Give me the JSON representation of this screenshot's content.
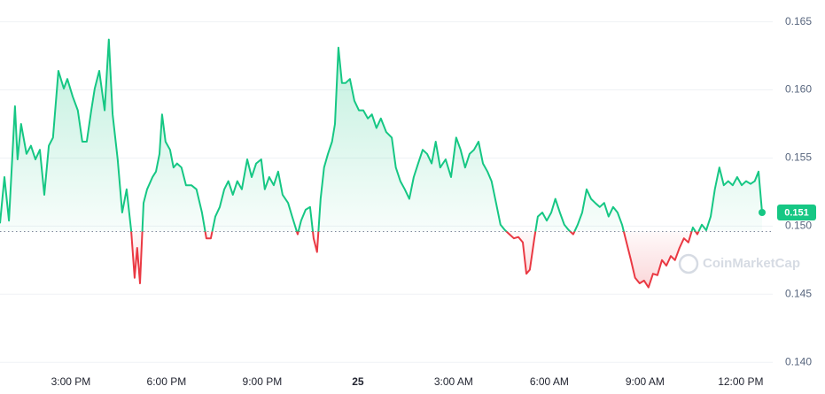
{
  "chart_data": {
    "type": "line",
    "x": [
      0.78,
      0.92,
      1.06,
      1.25,
      1.33,
      1.44,
      1.61,
      1.75,
      1.89,
      2.03,
      2.17,
      2.31,
      2.44,
      2.61,
      2.78,
      2.89,
      3.06,
      3.22,
      3.36,
      3.5,
      3.64,
      3.75,
      3.89,
      4.06,
      4.19,
      4.31,
      4.47,
      4.61,
      4.75,
      4.89,
      5.0,
      5.08,
      5.17,
      5.28,
      5.39,
      5.56,
      5.67,
      5.78,
      5.86,
      5.97,
      6.11,
      6.22,
      6.33,
      6.47,
      6.61,
      6.78,
      6.94,
      7.11,
      7.25,
      7.39,
      7.53,
      7.67,
      7.81,
      7.94,
      8.08,
      8.22,
      8.36,
      8.53,
      8.67,
      8.81,
      8.97,
      9.08,
      9.22,
      9.36,
      9.5,
      9.64,
      9.81,
      9.94,
      10.11,
      10.22,
      10.36,
      10.5,
      10.61,
      10.72,
      10.83,
      10.94,
      11.06,
      11.19,
      11.28,
      11.39,
      11.5,
      11.61,
      11.75,
      11.89,
      12.03,
      12.17,
      12.31,
      12.44,
      12.58,
      12.72,
      12.89,
      13.06,
      13.19,
      13.33,
      13.47,
      13.61,
      13.75,
      13.89,
      14.03,
      14.17,
      14.31,
      14.44,
      14.58,
      14.75,
      14.92,
      15.08,
      15.22,
      15.36,
      15.5,
      15.64,
      15.78,
      15.92,
      16.06,
      16.19,
      16.33,
      16.47,
      16.61,
      16.75,
      16.89,
      17.03,
      17.17,
      17.28,
      17.39,
      17.53,
      17.64,
      17.78,
      17.92,
      18.06,
      18.19,
      18.33,
      18.47,
      18.61,
      18.75,
      18.89,
      19.03,
      19.17,
      19.31,
      19.44,
      19.58,
      19.72,
      19.86,
      20.0,
      20.14,
      20.28,
      20.42,
      20.56,
      20.69,
      20.83,
      20.97,
      21.11,
      21.25,
      21.39,
      21.53,
      21.67,
      21.81,
      21.94,
      22.08,
      22.22,
      22.36,
      22.5,
      22.64,
      22.78,
      22.92,
      23.06,
      23.19,
      23.33,
      23.47,
      23.61,
      23.75,
      23.89,
      24.03,
      24.17,
      24.31,
      24.44,
      24.56,
      24.67
    ],
    "values": [
      0.1502,
      0.1536,
      0.1504,
      0.1588,
      0.1549,
      0.1575,
      0.1553,
      0.1559,
      0.1549,
      0.1556,
      0.1523,
      0.1559,
      0.1565,
      0.1614,
      0.1601,
      0.1608,
      0.1595,
      0.1585,
      0.1562,
      0.1562,
      0.1585,
      0.1601,
      0.1614,
      0.1585,
      0.1637,
      0.1582,
      0.1549,
      0.151,
      0.1527,
      0.1497,
      0.1462,
      0.1484,
      0.1458,
      0.1517,
      0.1527,
      0.1536,
      0.154,
      0.1553,
      0.1582,
      0.1562,
      0.1556,
      0.1543,
      0.1546,
      0.1543,
      0.153,
      0.153,
      0.1527,
      0.151,
      0.1491,
      0.1491,
      0.1507,
      0.1514,
      0.1527,
      0.1533,
      0.1523,
      0.1533,
      0.1527,
      0.1549,
      0.1536,
      0.1546,
      0.1549,
      0.1527,
      0.1536,
      0.153,
      0.154,
      0.1523,
      0.1517,
      0.1507,
      0.1494,
      0.1504,
      0.1512,
      0.1514,
      0.1491,
      0.1481,
      0.152,
      0.1543,
      0.1553,
      0.1562,
      0.1575,
      0.1631,
      0.1605,
      0.1605,
      0.1608,
      0.1592,
      0.1585,
      0.1585,
      0.1579,
      0.1582,
      0.1572,
      0.1579,
      0.1569,
      0.1565,
      0.1543,
      0.1533,
      0.1527,
      0.152,
      0.1536,
      0.1546,
      0.1556,
      0.1553,
      0.1546,
      0.1562,
      0.1543,
      0.1549,
      0.1536,
      0.1565,
      0.1556,
      0.1543,
      0.1553,
      0.1556,
      0.1562,
      0.1546,
      0.154,
      0.1533,
      0.1517,
      0.1501,
      0.1497,
      0.1494,
      0.1491,
      0.1492,
      0.1488,
      0.1465,
      0.1468,
      0.1491,
      0.1507,
      0.151,
      0.1504,
      0.151,
      0.152,
      0.151,
      0.1501,
      0.1497,
      0.1494,
      0.1501,
      0.151,
      0.1527,
      0.152,
      0.1517,
      0.1514,
      0.1517,
      0.1507,
      0.1514,
      0.151,
      0.1501,
      0.1488,
      0.1475,
      0.1462,
      0.1458,
      0.146,
      0.1455,
      0.1465,
      0.1464,
      0.1475,
      0.1471,
      0.1478,
      0.1475,
      0.1484,
      0.1491,
      0.1488,
      0.1499,
      0.1494,
      0.1501,
      0.1497,
      0.1507,
      0.1527,
      0.1543,
      0.153,
      0.1533,
      0.153,
      0.1536,
      0.153,
      0.1533,
      0.1531,
      0.1533,
      0.154,
      0.151
    ],
    "color": "#16c784",
    "down_color": "#ea3943",
    "baseline": 0.1496,
    "last_value_label": "0.151",
    "xlim": [
      0.78,
      24.67
    ],
    "xticks": [
      {
        "value": 3,
        "label": "3:00 PM"
      },
      {
        "value": 6,
        "label": "6:00 PM"
      },
      {
        "value": 9,
        "label": "9:00 PM"
      },
      {
        "value": 12,
        "label": "25"
      },
      {
        "value": 15,
        "label": "3:00 AM"
      },
      {
        "value": 18,
        "label": "6:00 AM"
      },
      {
        "value": 21,
        "label": "9:00 AM"
      },
      {
        "value": 24,
        "label": "12:00 PM"
      }
    ],
    "ylim": [
      0.1393,
      0.1666
    ],
    "yticks": [
      {
        "value": 0.14,
        "label": "0.140"
      },
      0.145,
      {
        "value": 0.15,
        "label": "0.150"
      },
      0.155,
      {
        "value": 0.16,
        "label": "0.160"
      },
      0.165
    ],
    "grid": true,
    "watermark": "CoinMarketCap"
  }
}
